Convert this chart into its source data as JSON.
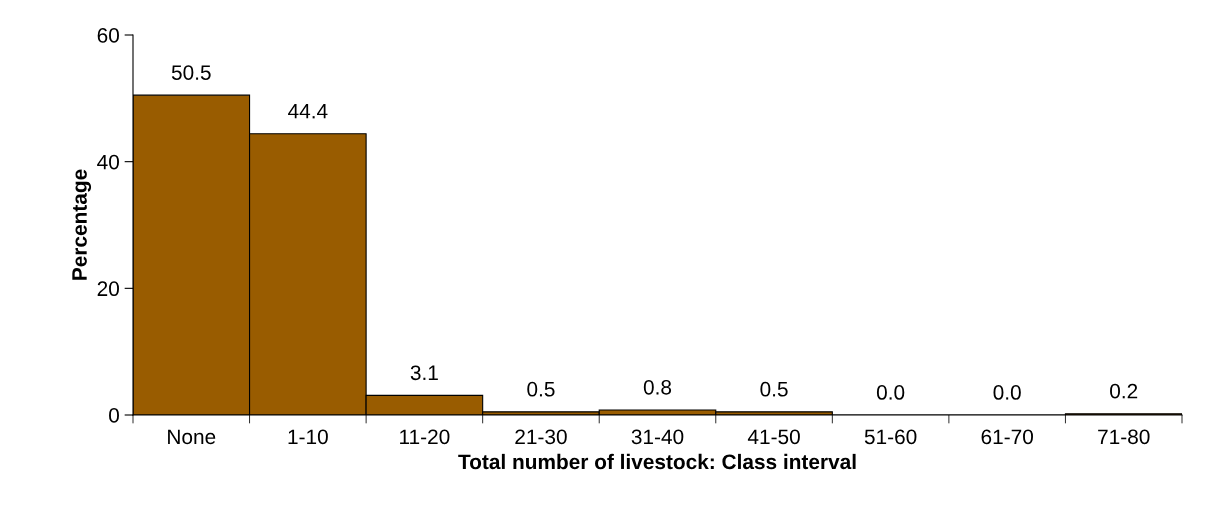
{
  "chart_data": {
    "type": "bar",
    "xlabel": "Total number of livestock: Class interval",
    "ylabel": "Percentage",
    "categories": [
      "None",
      "1-10",
      "11-20",
      "21-30",
      "31-40",
      "41-50",
      "51-60",
      "61-70",
      "71-80"
    ],
    "values": [
      50.5,
      44.4,
      3.1,
      0.5,
      0.8,
      0.5,
      0.0,
      0.0,
      0.2
    ],
    "value_labels": [
      "50.5",
      "44.4",
      "3.1",
      "0.5",
      "0.8",
      "0.5",
      "0.0",
      "0.0",
      "0.2"
    ],
    "color": "#995c00",
    "ylim": [
      0,
      60
    ],
    "yticks": [
      0,
      20,
      40,
      60
    ]
  }
}
